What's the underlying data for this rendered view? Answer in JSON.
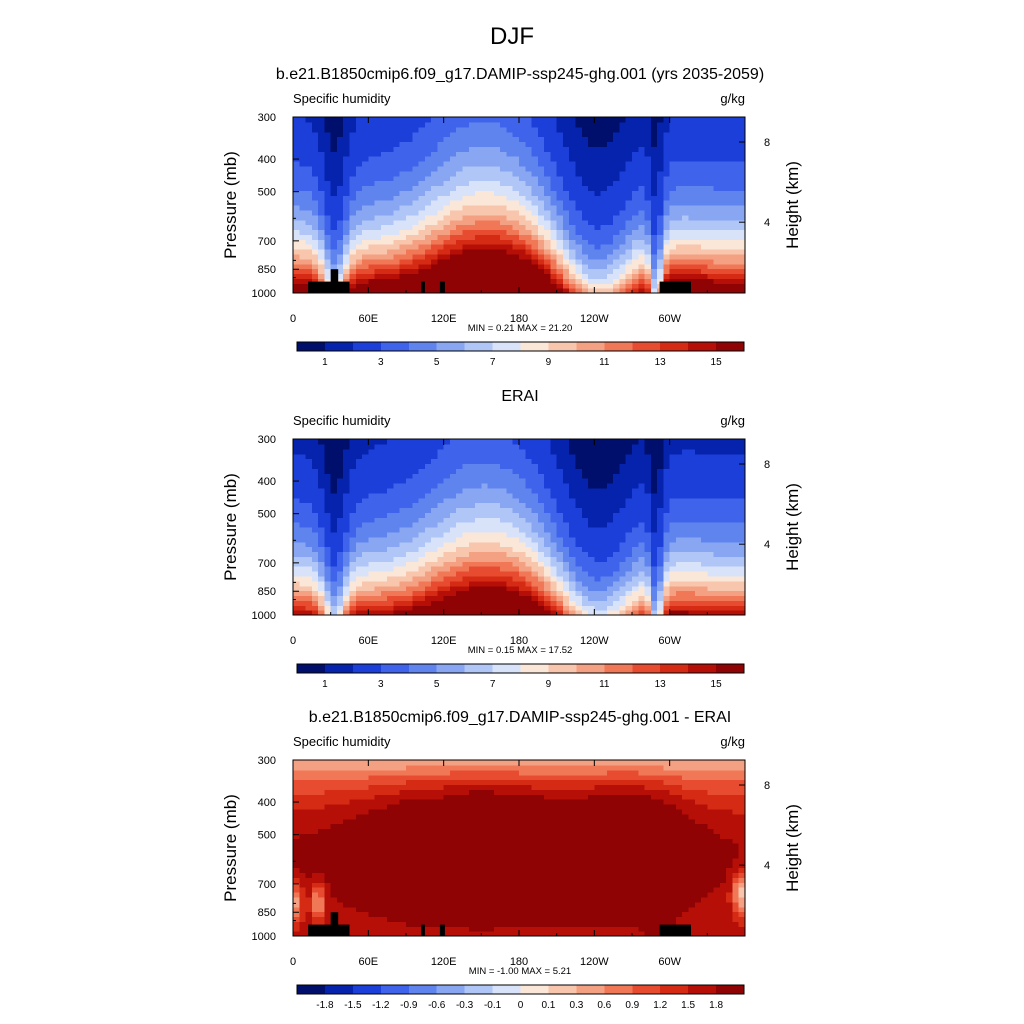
{
  "figure_title": "DJF",
  "chart_data": [
    {
      "type": "heatmap",
      "title": "b.e21.B1850cmip6.f09_g17.DAMIP-ssp245-ghg.001 (yrs 2035-2059)",
      "left_label": "Specific humidity",
      "right_label": "g/kg",
      "xlabel": "",
      "ylabel": "Pressure (mb)",
      "y2label": "Height (km)",
      "x_ticks": [
        "0",
        "60E",
        "120E",
        "180",
        "120W",
        "60W"
      ],
      "y_ticks": [
        "300",
        "400",
        "500",
        "700",
        "850",
        "1000"
      ],
      "y2_ticks": [
        "8",
        "4"
      ],
      "minmax": "MIN =   0.21  MAX =  21.20",
      "colorbar_labels": [
        "1",
        "3",
        "5",
        "7",
        "9",
        "11",
        "13",
        "15"
      ],
      "colorbar_levels": [
        0.5,
        1,
        2,
        3,
        4,
        5,
        6,
        7,
        8,
        9,
        10,
        11,
        12,
        13,
        14,
        15
      ],
      "value_range": [
        0.21,
        21.2
      ],
      "field": "mean",
      "terrain": true
    },
    {
      "type": "heatmap",
      "title": "ERAI",
      "left_label": "Specific humidity",
      "right_label": "g/kg",
      "xlabel": "",
      "ylabel": "Pressure (mb)",
      "y2label": "Height (km)",
      "x_ticks": [
        "0",
        "60E",
        "120E",
        "180",
        "120W",
        "60W"
      ],
      "y_ticks": [
        "300",
        "400",
        "500",
        "700",
        "850",
        "1000"
      ],
      "y2_ticks": [
        "8",
        "4"
      ],
      "minmax": "MIN =   0.15  MAX =  17.52",
      "colorbar_labels": [
        "1",
        "3",
        "5",
        "7",
        "9",
        "11",
        "13",
        "15"
      ],
      "colorbar_levels": [
        0.5,
        1,
        2,
        3,
        4,
        5,
        6,
        7,
        8,
        9,
        10,
        11,
        12,
        13,
        14,
        15
      ],
      "value_range": [
        0.15,
        17.52
      ],
      "field": "obs",
      "terrain": false
    },
    {
      "type": "heatmap",
      "title": "b.e21.B1850cmip6.f09_g17.DAMIP-ssp245-ghg.001 - ERAI",
      "left_label": "Specific humidity",
      "right_label": "g/kg",
      "xlabel": "",
      "ylabel": "Pressure (mb)",
      "y2label": "Height (km)",
      "x_ticks": [
        "0",
        "60E",
        "120E",
        "180",
        "120W",
        "60W"
      ],
      "y_ticks": [
        "300",
        "400",
        "500",
        "700",
        "850",
        "1000"
      ],
      "y2_ticks": [
        "8",
        "4"
      ],
      "minmax": "MIN =  -1.00  MAX =   5.21",
      "colorbar_labels": [
        "-1.8",
        "-1.5",
        "-1.2",
        "-0.9",
        "-0.6",
        "-0.3",
        "-0.1",
        "0",
        "0.1",
        "0.3",
        "0.6",
        "0.9",
        "1.2",
        "1.5",
        "1.8"
      ],
      "colorbar_levels": [
        -1.8,
        -1.5,
        -1.2,
        -0.9,
        -0.6,
        -0.3,
        -0.1,
        0,
        0.1,
        0.3,
        0.6,
        0.9,
        1.2,
        1.5,
        1.8
      ],
      "value_range": [
        -1.0,
        5.21
      ],
      "field": "diff",
      "terrain": true
    }
  ],
  "colors": {
    "colormap": [
      "#000f6b",
      "#0523ad",
      "#1c3fd9",
      "#3f63ea",
      "#5f84ee",
      "#89a6f2",
      "#b0c6f6",
      "#d8e3fa",
      "#fbe7d8",
      "#f8c5ad",
      "#f4a183",
      "#f07857",
      "#e84c30",
      "#d52b15",
      "#b50f07",
      "#8f0304"
    ]
  }
}
